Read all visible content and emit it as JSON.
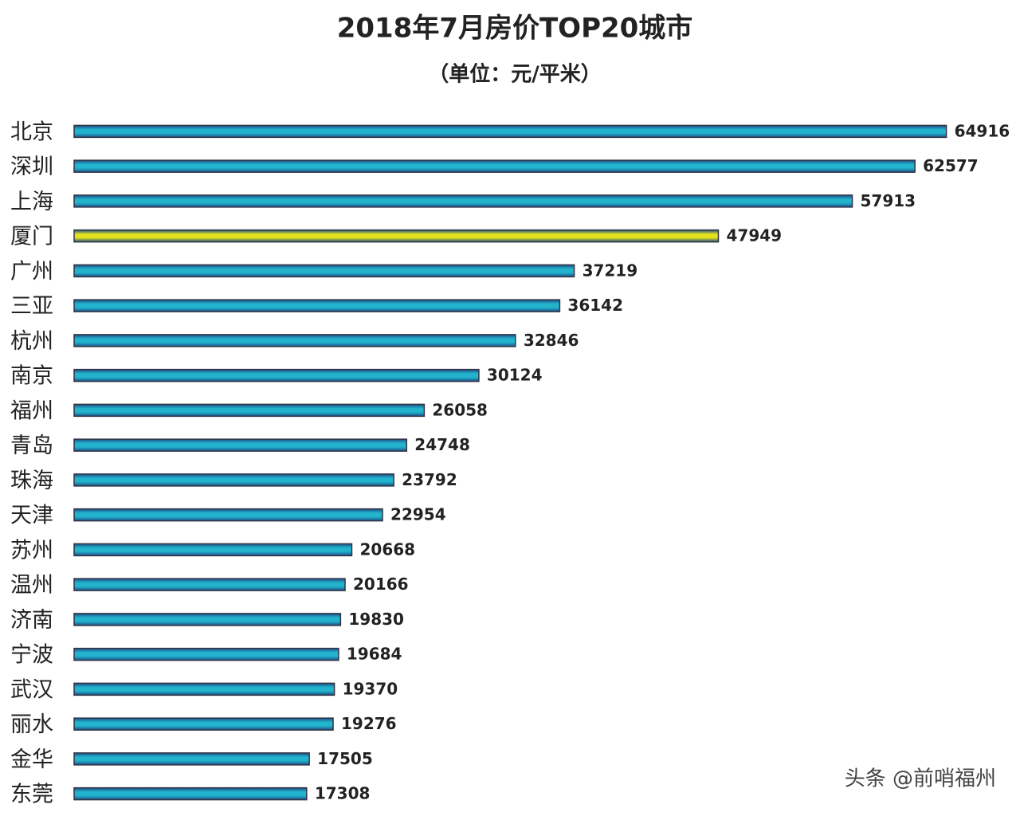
{
  "chart_data": {
    "type": "bar",
    "orientation": "horizontal",
    "title": "2018年7月房价TOP20城市",
    "subtitle": "（单位：元/平米）",
    "categories": [
      "北京",
      "深圳",
      "上海",
      "厦门",
      "广州",
      "三亚",
      "杭州",
      "南京",
      "福州",
      "青岛",
      "珠海",
      "天津",
      "苏州",
      "温州",
      "济南",
      "宁波",
      "武汉",
      "丽水",
      "金华",
      "东莞"
    ],
    "values": [
      64916,
      62577,
      57913,
      47949,
      37219,
      36142,
      32846,
      30124,
      26058,
      24748,
      23792,
      22954,
      20668,
      20166,
      19830,
      19684,
      19370,
      19276,
      17505,
      17308
    ],
    "colors": [
      "#22b4cc",
      "#22b4cc",
      "#22b4cc",
      "#e4e21c",
      "#22b4cc",
      "#22b4cc",
      "#22b4cc",
      "#22b4cc",
      "#22b4cc",
      "#22b4cc",
      "#22b4cc",
      "#22b4cc",
      "#22b4cc",
      "#22b4cc",
      "#22b4cc",
      "#22b4cc",
      "#22b4cc",
      "#22b4cc",
      "#22b4cc",
      "#22b4cc"
    ],
    "xlim": [
      0,
      65000
    ],
    "annotation": "头条 @前哨福州"
  }
}
